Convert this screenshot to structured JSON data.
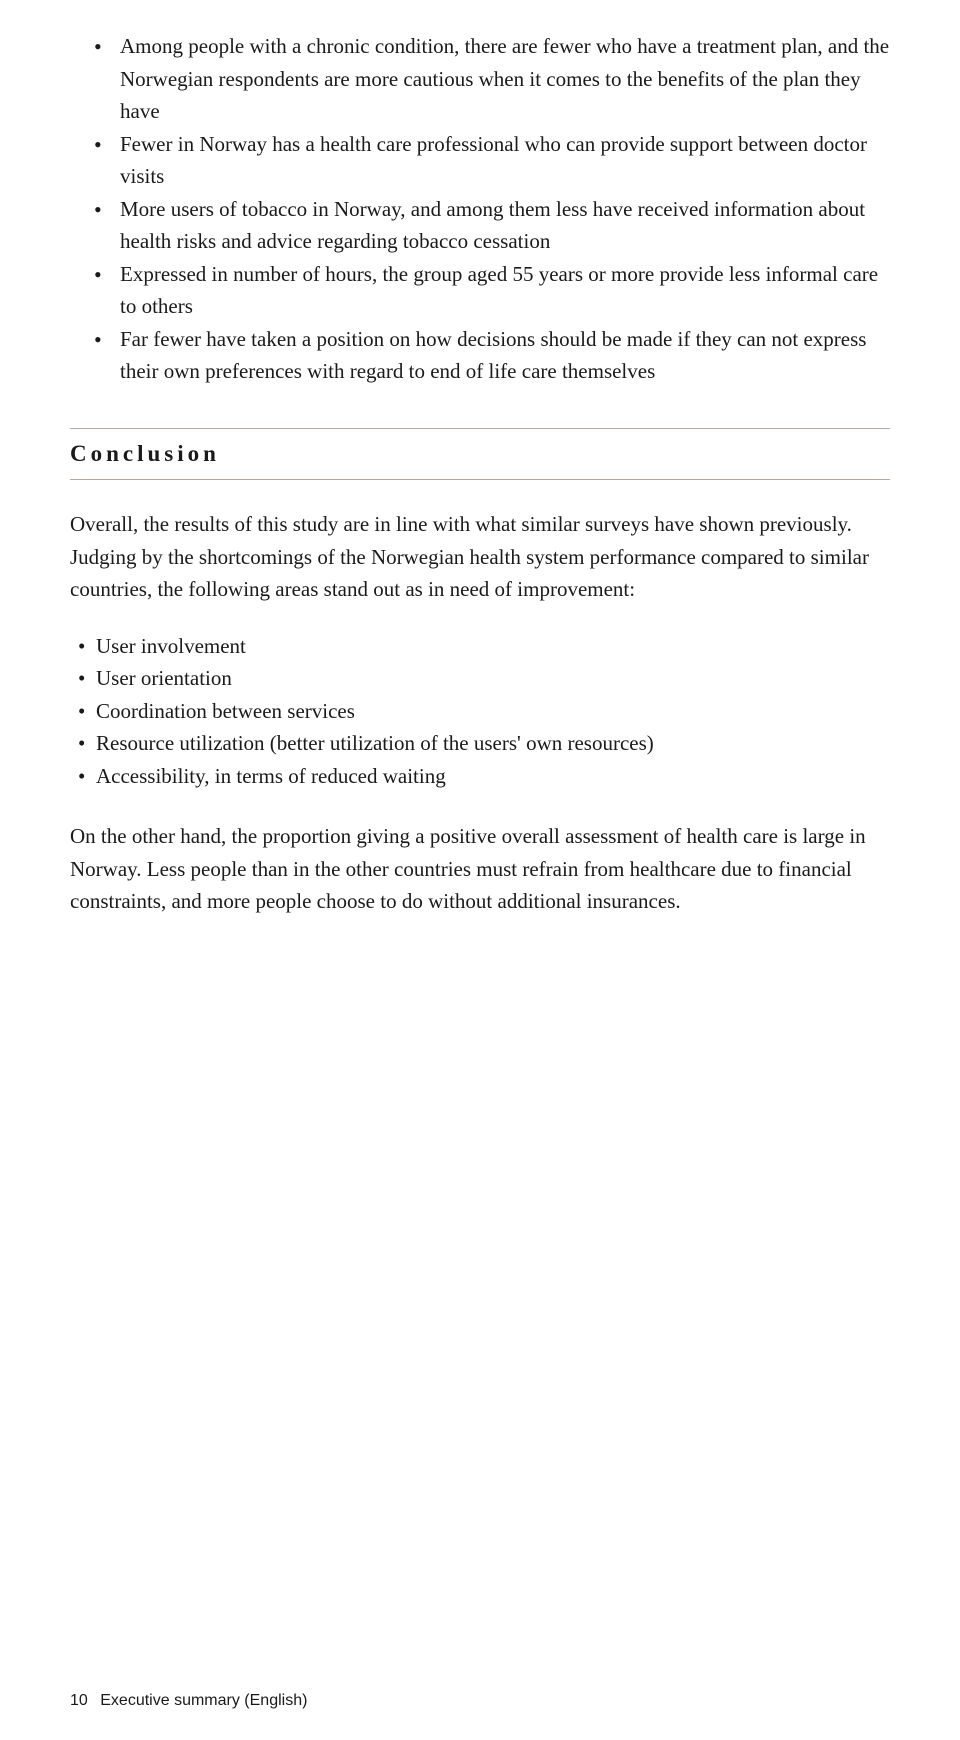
{
  "bullets_primary": [
    "Among people with a chronic condition, there are fewer who have a treatment plan, and the Norwegian respondents are more cautious when it comes to the benefits of the plan they have",
    "Fewer in Norway has a health care professional who can provide support between doctor visits",
    "More users of tobacco in Norway, and among them less have received information about health risks and advice regarding tobacco cessation",
    "Expressed in number of hours, the group aged 55 years or more provide less informal care to others",
    "Far fewer have taken a position on how decisions should be made if they can not express their own preferences with regard to end of life care themselves"
  ],
  "section_heading": "Conclusion",
  "paragraph_1": "Overall, the results of this study are in line with what similar surveys have shown previously. Judging by the shortcomings of the Norwegian health system performance compared to similar countries, the following areas stand out as in need of improvement:",
  "bullets_secondary": [
    "User involvement",
    "User orientation",
    "Coordination between services",
    "Resource utilization (better utilization of the users' own resources)",
    "Accessibility, in terms of reduced waiting"
  ],
  "paragraph_2": "On the other hand, the proportion giving a positive overall assessment of health care is large in Norway. Less people than in the other countries must refrain from healthcare due to financial constraints, and more people choose to do without additional insurances.",
  "footer": {
    "page_number": "10",
    "section_label": "Executive summary (English)"
  }
}
